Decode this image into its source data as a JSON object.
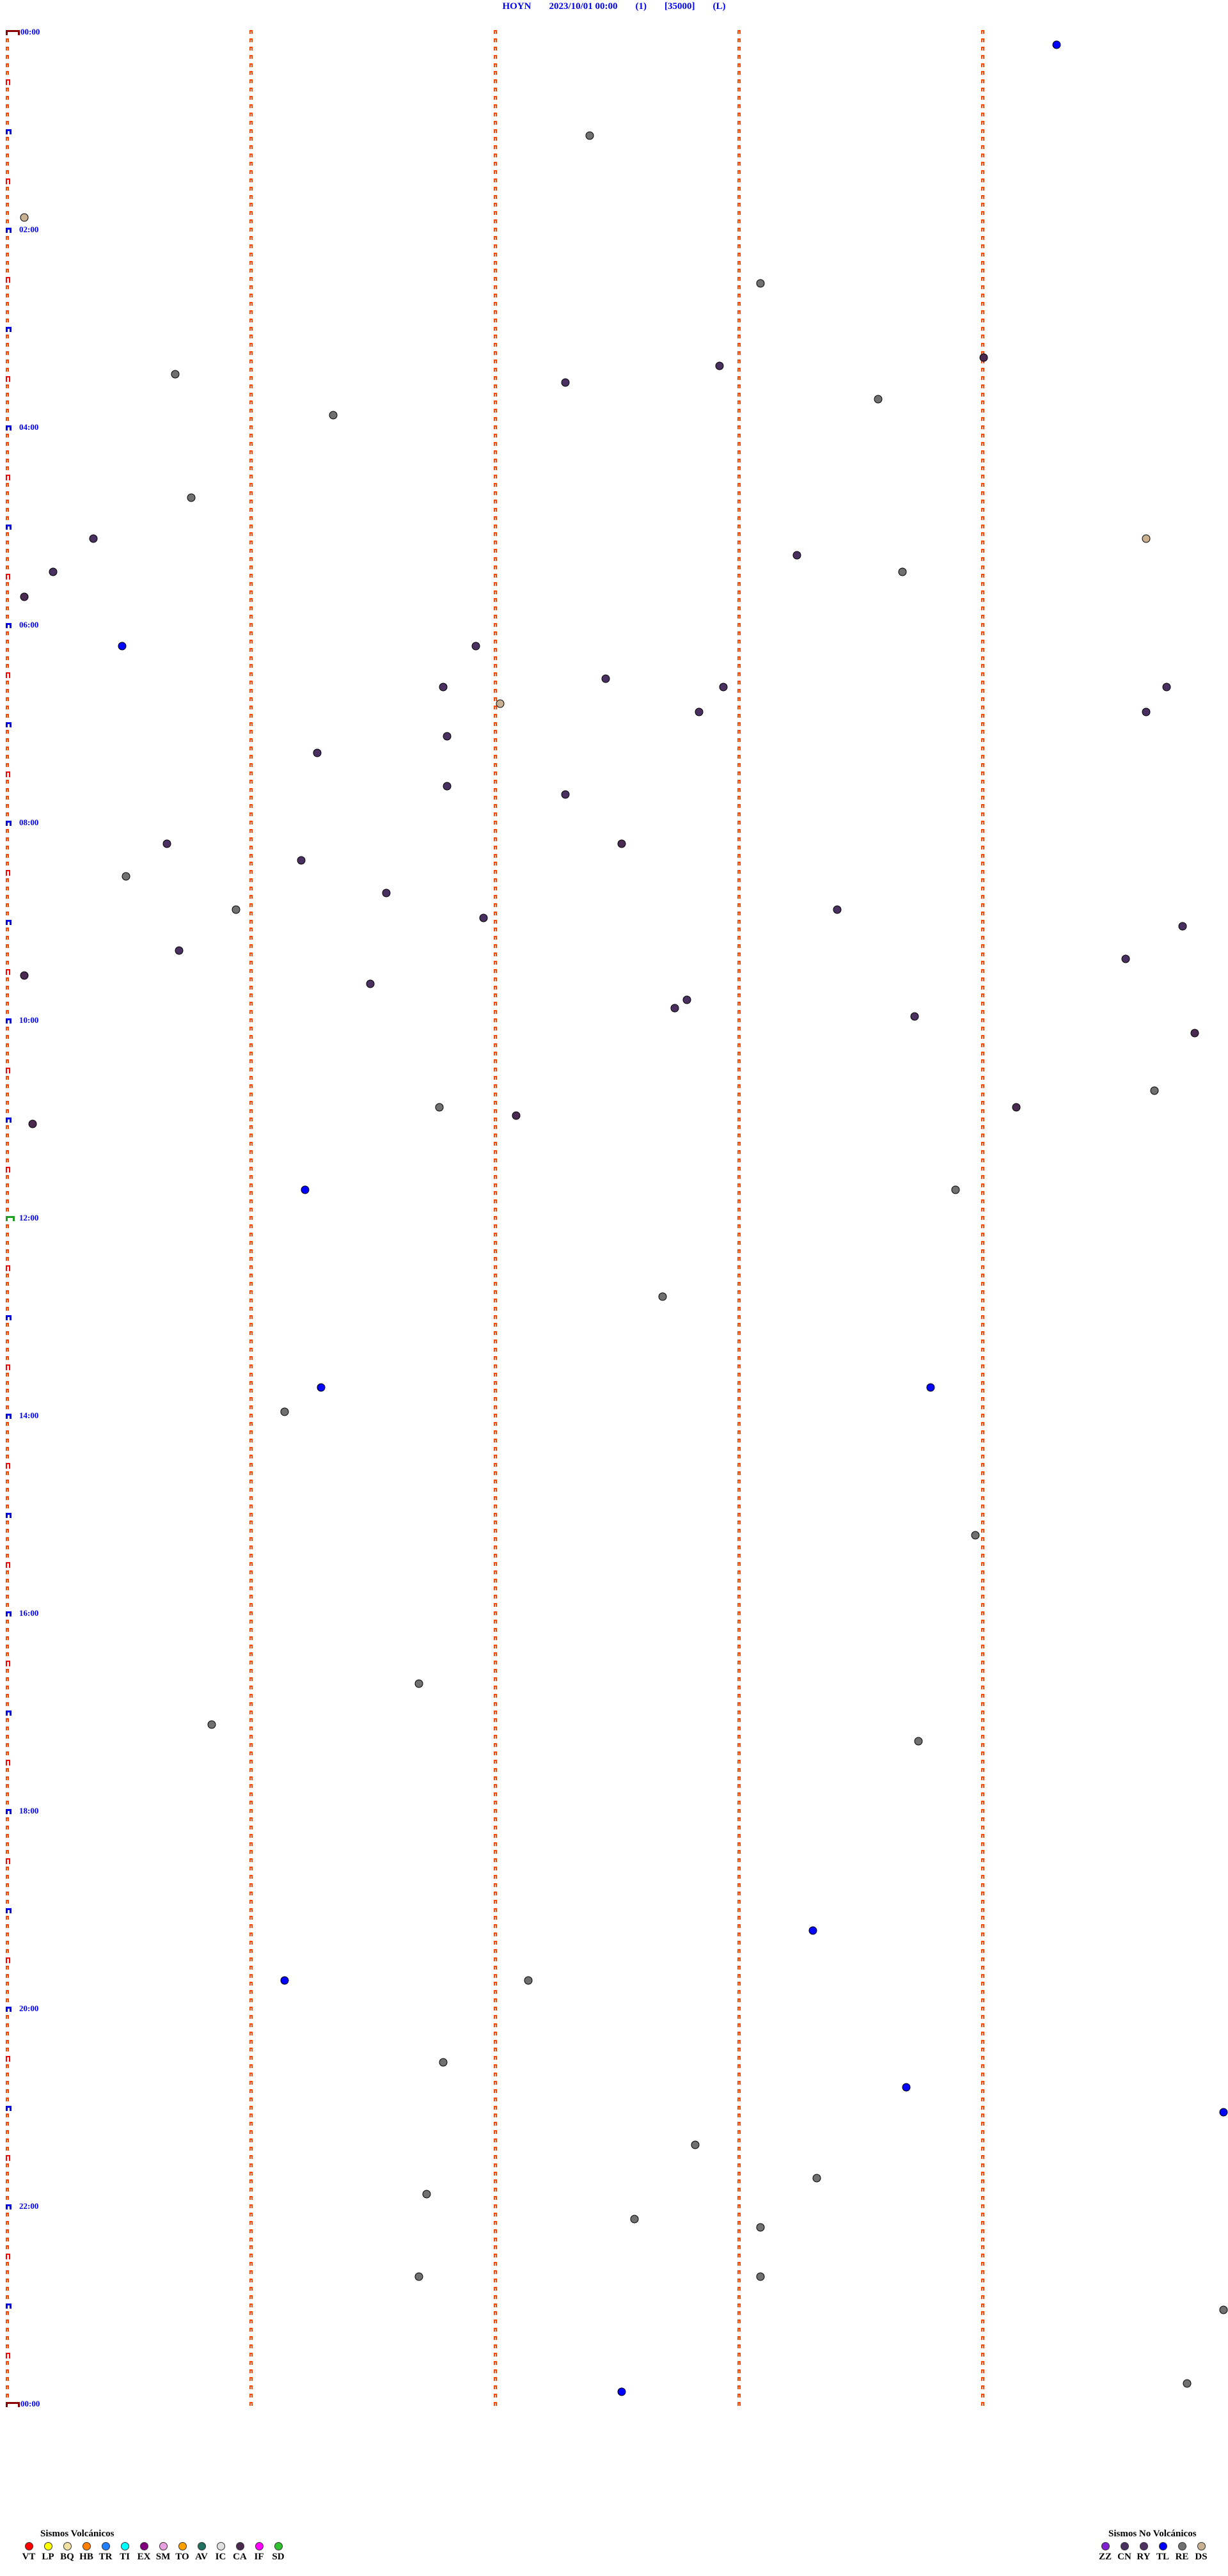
{
  "header": {
    "station": "HOYN",
    "datetime": "2023/10/01 00:00",
    "channel": "(1)",
    "scale": "[35000]",
    "mode": "(L)"
  },
  "chart_data": {
    "type": "scatter",
    "description_axis": "helicorder-style event timeline, rows of 5 minutes, 24 hours",
    "x_unit": "minutes within row",
    "xlim": [
      0,
      5
    ],
    "row_minutes": 5,
    "time_labels": [
      "00:00",
      "02:00",
      "04:00",
      "06:00",
      "08:00",
      "10:00",
      "12:00",
      "14:00",
      "16:00",
      "18:00",
      "20:00",
      "22:00",
      "00:00"
    ],
    "events": [
      {
        "t": "00:09:18",
        "type": "TL"
      },
      {
        "t": "01:02:23",
        "type": "RE"
      },
      {
        "t": "01:50:04",
        "type": "DS"
      },
      {
        "t": "02:33:05",
        "type": "RE"
      },
      {
        "t": "03:22:55",
        "type": "CN"
      },
      {
        "t": "03:19:00",
        "type": "CA"
      },
      {
        "t": "03:25:41",
        "type": "RE"
      },
      {
        "t": "03:32:17",
        "type": "CN"
      },
      {
        "t": "03:43:34",
        "type": "RE"
      },
      {
        "t": "03:51:20",
        "type": "RE"
      },
      {
        "t": "04:40:45",
        "type": "RE"
      },
      {
        "t": "05:05:21",
        "type": "CN"
      },
      {
        "t": "05:09:40",
        "type": "DS"
      },
      {
        "t": "05:18:14",
        "type": "CN"
      },
      {
        "t": "05:25:11",
        "type": "CN"
      },
      {
        "t": "05:28:40",
        "type": "RE"
      },
      {
        "t": "05:40:04",
        "type": "CA"
      },
      {
        "t": "06:10:28",
        "type": "TL"
      },
      {
        "t": "06:11:55",
        "type": "CN"
      },
      {
        "t": "06:32:27",
        "type": "CN"
      },
      {
        "t": "06:36:47",
        "type": "CN"
      },
      {
        "t": "06:37:56",
        "type": "CN"
      },
      {
        "t": "06:39:45",
        "type": "CN"
      },
      {
        "t": "06:47:01",
        "type": "DS"
      },
      {
        "t": "06:52:50",
        "type": "CN"
      },
      {
        "t": "06:54:40",
        "type": "CN"
      },
      {
        "t": "07:06:48",
        "type": "CN"
      },
      {
        "t": "07:16:16",
        "type": "CN"
      },
      {
        "t": "07:36:48",
        "type": "CN"
      },
      {
        "t": "07:42:17",
        "type": "CN"
      },
      {
        "t": "08:10:39",
        "type": "CN"
      },
      {
        "t": "08:12:31",
        "type": "CA"
      },
      {
        "t": "08:21:12",
        "type": "CN"
      },
      {
        "t": "08:30:29",
        "type": "RE"
      },
      {
        "t": "08:41:33",
        "type": "CN"
      },
      {
        "t": "08:50:56",
        "type": "RE"
      },
      {
        "t": "08:56:57",
        "type": "CN"
      },
      {
        "t": "08:53:24",
        "type": "CN"
      },
      {
        "t": "09:04:49",
        "type": "CN"
      },
      {
        "t": "09:15:42",
        "type": "CN"
      },
      {
        "t": "09:24:35",
        "type": "CN"
      },
      {
        "t": "09:30:04",
        "type": "CA"
      },
      {
        "t": "09:36:29",
        "type": "CN"
      },
      {
        "t": "09:52:44",
        "type": "CN"
      },
      {
        "t": "09:47:47",
        "type": "CN"
      },
      {
        "t": "09:58:43",
        "type": "CN"
      },
      {
        "t": "10:09:52",
        "type": "CA"
      },
      {
        "t": "10:44:42",
        "type": "RE"
      },
      {
        "t": "10:54:08",
        "type": "CA"
      },
      {
        "t": "10:51:46",
        "type": "RE"
      },
      {
        "t": "10:57:05",
        "type": "CA"
      },
      {
        "t": "11:00:06",
        "type": "CA"
      },
      {
        "t": "11:41:13",
        "type": "TL"
      },
      {
        "t": "11:43:53",
        "type": "RE"
      },
      {
        "t": "12:47:41",
        "type": "RE"
      },
      {
        "t": "13:43:47",
        "type": "TL"
      },
      {
        "t": "13:41:17",
        "type": "TL"
      },
      {
        "t": "13:56:08",
        "type": "RE"
      },
      {
        "t": "15:13:58",
        "type": "RE"
      },
      {
        "t": "16:41:41",
        "type": "RE"
      },
      {
        "t": "17:05:50",
        "type": "RE"
      },
      {
        "t": "17:18:44",
        "type": "RE"
      },
      {
        "t": "19:13:18",
        "type": "TL"
      },
      {
        "t": "19:41:08",
        "type": "TL"
      },
      {
        "t": "19:42:08",
        "type": "RE"
      },
      {
        "t": "20:31:47",
        "type": "RE"
      },
      {
        "t": "20:48:41",
        "type": "TL"
      },
      {
        "t": "21:04:59",
        "type": "TL"
      },
      {
        "t": "21:22:49",
        "type": "RE"
      },
      {
        "t": "21:43:19",
        "type": "RE"
      },
      {
        "t": "21:51:43",
        "type": "RE"
      },
      {
        "t": "22:07:34",
        "type": "RE"
      },
      {
        "t": "22:13:05",
        "type": "RE"
      },
      {
        "t": "22:41:41",
        "type": "RE"
      },
      {
        "t": "22:43:05",
        "type": "RE"
      },
      {
        "t": "23:04:59",
        "type": "RE"
      },
      {
        "t": "23:49:50",
        "type": "RE"
      },
      {
        "t": "23:52:31",
        "type": "TL"
      }
    ]
  },
  "legend_volcanic": {
    "title": "Sismos Volcánicos",
    "items": [
      {
        "code": "VT",
        "color": "#ff0000"
      },
      {
        "code": "LP",
        "color": "#ffff00"
      },
      {
        "code": "BQ",
        "color": "#f0e0a0"
      },
      {
        "code": "HB",
        "color": "#ff8000"
      },
      {
        "code": "TR",
        "color": "#2080ff"
      },
      {
        "code": "TI",
        "color": "#00ffff"
      },
      {
        "code": "EX",
        "color": "#800080"
      },
      {
        "code": "SM",
        "color": "#e8a0e0"
      },
      {
        "code": "TO",
        "color": "#ffa000"
      },
      {
        "code": "AV",
        "color": "#207060"
      },
      {
        "code": "IC",
        "color": "#e0e0e0"
      },
      {
        "code": "CA",
        "color": "#4a2a50"
      },
      {
        "code": "IF",
        "color": "#ff00ff"
      },
      {
        "code": "SD",
        "color": "#30c030"
      }
    ]
  },
  "legend_non_volcanic": {
    "title": "Sismos No Volcánicos",
    "items": [
      {
        "code": "ZZ",
        "color": "#8020d0"
      },
      {
        "code": "CN",
        "color": "#4a3060"
      },
      {
        "code": "RY",
        "color": "#503060"
      },
      {
        "code": "TL",
        "color": "#0000ff"
      },
      {
        "code": "RE",
        "color": "#707070"
      },
      {
        "code": "DS",
        "color": "#c8b090"
      }
    ]
  }
}
